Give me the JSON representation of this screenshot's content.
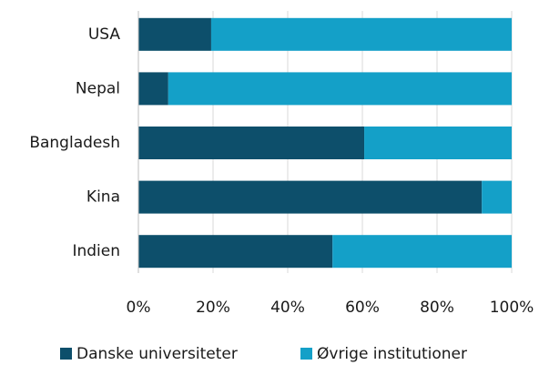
{
  "chart_data": {
    "type": "stacked_barh",
    "categories": [
      "USA",
      "Nepal",
      "Bangladesh",
      "Kina",
      "Indien"
    ],
    "series": [
      {
        "name": "Danske universiteter",
        "color": "#0d4f6b",
        "values": [
          19.5,
          8,
          60.5,
          92,
          52
        ]
      },
      {
        "name": "Øvrige institutioner",
        "color": "#14a0c8",
        "values": [
          80.5,
          92,
          39.5,
          8,
          48
        ]
      }
    ],
    "xlim": [
      0,
      100
    ],
    "xticks": [
      {
        "value": 0,
        "label": "0%"
      },
      {
        "value": 20,
        "label": "20%"
      },
      {
        "value": 40,
        "label": "40%"
      },
      {
        "value": 60,
        "label": "60%"
      },
      {
        "value": 80,
        "label": "80%"
      },
      {
        "value": 100,
        "label": "100%"
      }
    ],
    "grid": true,
    "legend": "bottom"
  }
}
